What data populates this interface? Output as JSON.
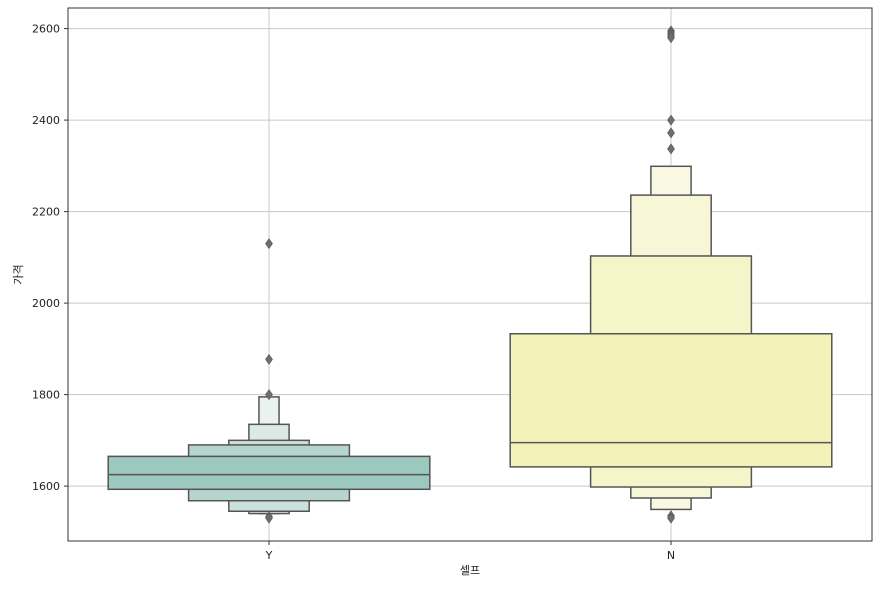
{
  "chart_data": {
    "type": "boxen",
    "xlabel": "셀프",
    "ylabel": "가격",
    "categories": [
      "Y",
      "N"
    ],
    "ylim": [
      1480,
      2645
    ],
    "yticks": [
      1600,
      1800,
      2000,
      2200,
      2400,
      2600
    ],
    "grid": true,
    "colors": {
      "Y": [
        "#9dc8be",
        "#b6d5cd",
        "#cbe1db",
        "#dde9e5",
        "#e9f2ef"
      ],
      "N": [
        "#f3f3b9",
        "#f5f5c9",
        "#f7f7d7",
        "#f9f9e3",
        "#fbfbee"
      ]
    },
    "series": [
      {
        "category": "Y",
        "median": 1625,
        "boxes": [
          {
            "low": 1593,
            "high": 1665
          },
          {
            "low": 1568,
            "high": 1690
          },
          {
            "low": 1545,
            "high": 1700
          },
          {
            "low": 1540,
            "high": 1735
          },
          {
            "low": 1540,
            "high": 1795
          }
        ],
        "outliers": [
          2130,
          1877,
          1800,
          1533,
          1530
        ]
      },
      {
        "category": "N",
        "median": 1695,
        "boxes": [
          {
            "low": 1642,
            "high": 1933
          },
          {
            "low": 1598,
            "high": 2103
          },
          {
            "low": 1574,
            "high": 2236
          },
          {
            "low": 1549,
            "high": 2299
          }
        ],
        "outliers": [
          2595,
          2590,
          2585,
          2580,
          2400,
          2372,
          2337,
          1535,
          1530
        ]
      }
    ]
  }
}
